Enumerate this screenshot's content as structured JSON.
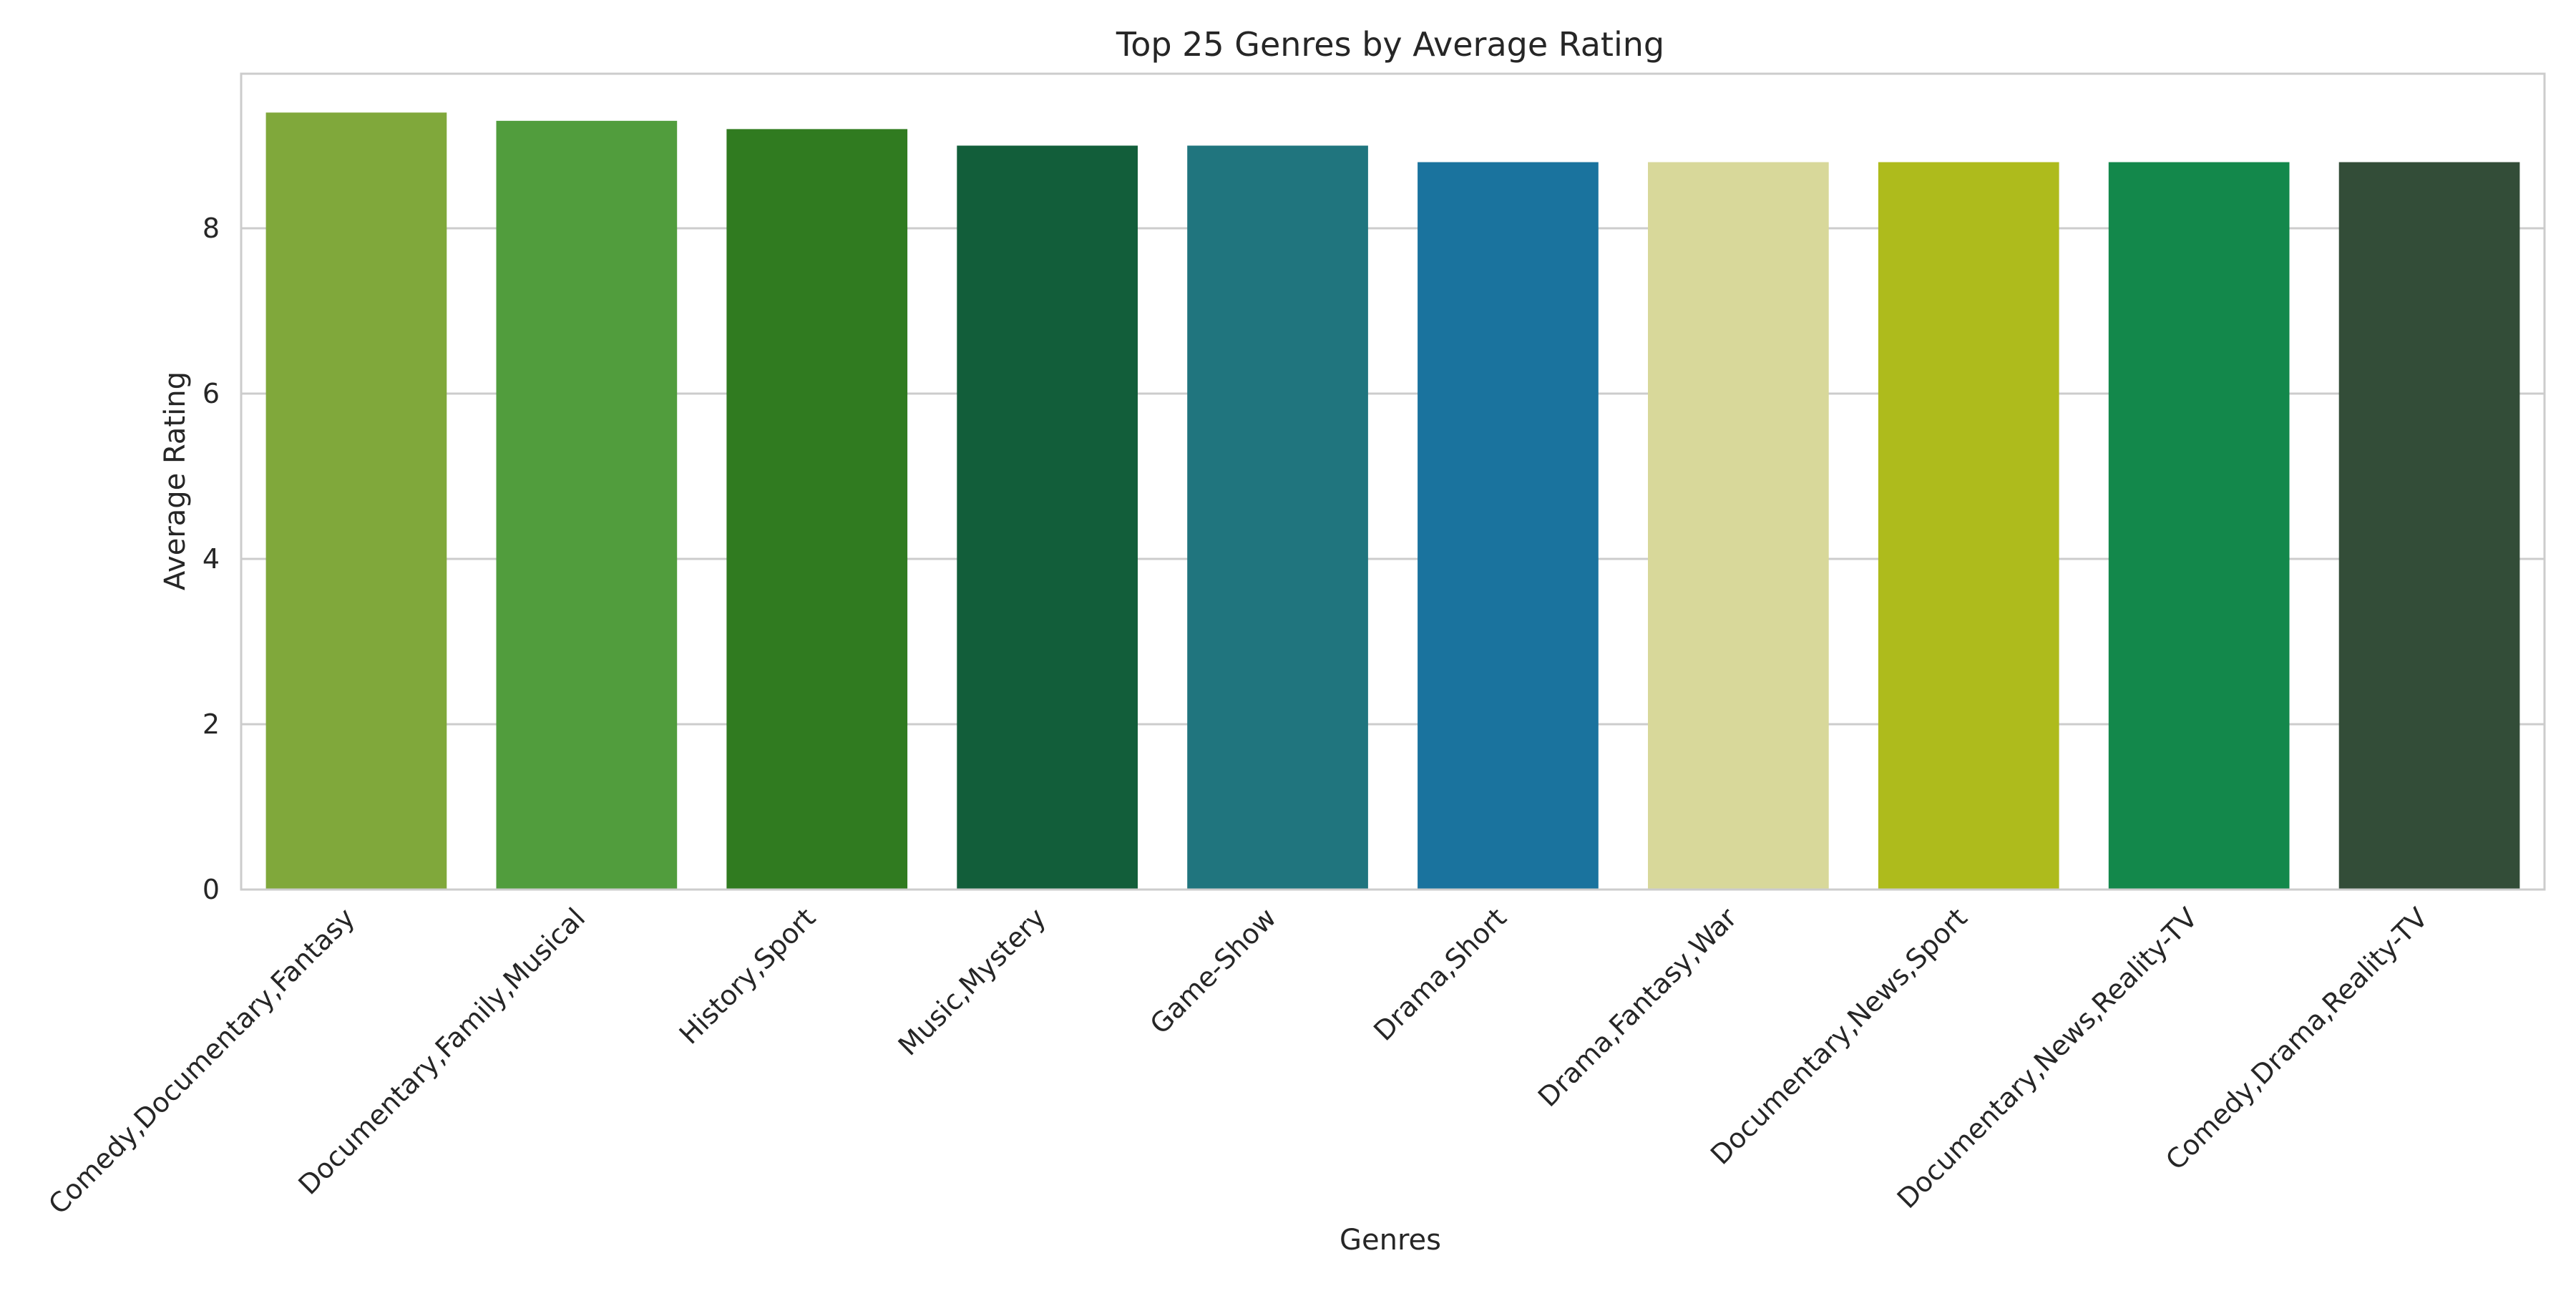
{
  "chart_data": {
    "type": "bar",
    "title": "Top 25 Genres by Average Rating",
    "xlabel": "Genres",
    "ylabel": "Average Rating",
    "ylim": [
      0,
      9.87
    ],
    "yticks": [
      0,
      2,
      4,
      6,
      8
    ],
    "grid": "horizontal",
    "categories": [
      "Comedy,Documentary,Fantasy",
      "Documentary,Family,Musical",
      "History,Sport",
      "Music,Mystery",
      "Game-Show",
      "Drama,Short",
      "Drama,Fantasy,War",
      "Documentary,News,Sport",
      "Documentary,News,Reality-TV",
      "Comedy,Drama,Reality-TV"
    ],
    "values": [
      9.4,
      9.3,
      9.2,
      9.0,
      9.0,
      8.8,
      8.8,
      8.8,
      8.8,
      8.8
    ],
    "colors": [
      "#80a83b",
      "#519d3d",
      "#307b20",
      "#125e3a",
      "#20757e",
      "#1a739e",
      "#d8d89a",
      "#aebb1c",
      "#13884b",
      "#334d38"
    ],
    "style": {
      "background": "#ffffff",
      "grid_color": "#cccccc",
      "spine_color": "#cccccc",
      "text_color": "#262626"
    }
  }
}
